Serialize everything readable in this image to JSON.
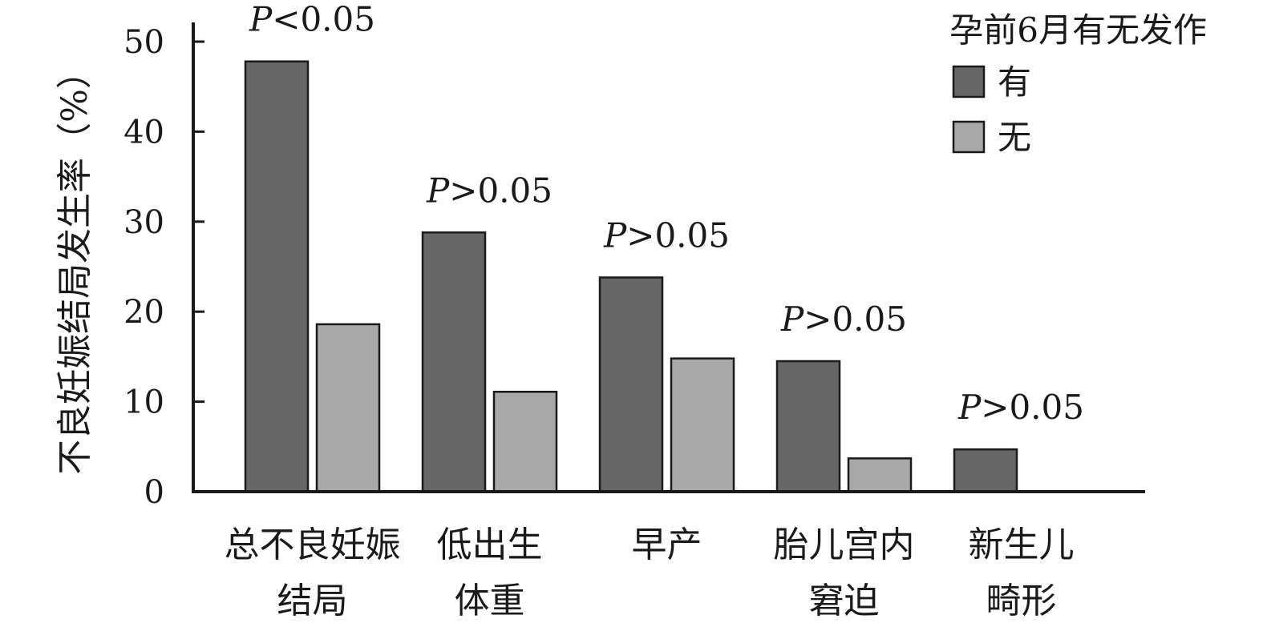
{
  "chart_data": {
    "type": "bar",
    "ylabel": "不良妊娠结局发生率（%）",
    "ylim": [
      0,
      50
    ],
    "yticks": [
      "0",
      "10",
      "20",
      "30",
      "40",
      "50"
    ],
    "categories": [
      [
        "总不良妊娠",
        "结局"
      ],
      [
        "低出生",
        "体重"
      ],
      [
        "早产"
      ],
      [
        "胎儿宫内",
        "窘迫"
      ],
      [
        "新生儿",
        "畸形"
      ]
    ],
    "legend": {
      "title": "孕前6月有无发作",
      "position": "top-right"
    },
    "series": [
      {
        "name": "有",
        "color": "#666666",
        "values": [
          47.8,
          28.8,
          23.8,
          14.5,
          4.7
        ]
      },
      {
        "name": "无",
        "color": "#a8a8a8",
        "values": [
          18.6,
          11.1,
          14.8,
          3.7,
          0
        ]
      }
    ],
    "annotations": [
      {
        "letter": "P",
        "rest": "<0.05"
      },
      {
        "letter": "P",
        "rest": ">0.05"
      },
      {
        "letter": "P",
        "rest": ">0.05"
      },
      {
        "letter": "P",
        "rest": ">0.05"
      },
      {
        "letter": "P",
        "rest": ">0.05"
      }
    ],
    "grid": false
  }
}
